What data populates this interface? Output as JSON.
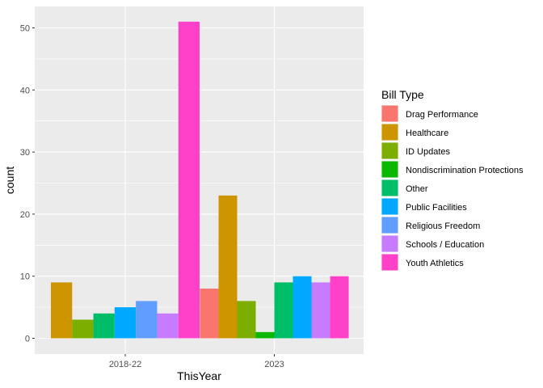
{
  "chart_data": {
    "type": "bar",
    "xlabel": "ThisYear",
    "ylabel": "count",
    "ylim": [
      0,
      52.5
    ],
    "yticks": [
      0,
      10,
      20,
      30,
      40,
      50
    ],
    "grid": true,
    "legend_position": "right",
    "legend_title": "Bill Type",
    "categories": [
      "2018-22",
      "2023"
    ],
    "series": [
      {
        "name": "Drag Performance",
        "color": "#F8766D",
        "values": [
          null,
          8
        ]
      },
      {
        "name": "Healthcare",
        "color": "#CD9600",
        "values": [
          9,
          23
        ]
      },
      {
        "name": "ID Updates",
        "color": "#7CAE00",
        "values": [
          3,
          6
        ]
      },
      {
        "name": "Nondiscrimination Protections",
        "color": "#0CB702",
        "values": [
          null,
          1
        ]
      },
      {
        "name": "Other",
        "color": "#00BE67",
        "values": [
          4,
          9
        ]
      },
      {
        "name": "Public Facilities",
        "color": "#00A9FF",
        "values": [
          5,
          10
        ]
      },
      {
        "name": "Religious Freedom",
        "color": "#619CFF",
        "values": [
          6,
          null
        ]
      },
      {
        "name": "Schools / Education",
        "color": "#C77CFF",
        "values": [
          4,
          9
        ]
      },
      {
        "name": "Youth Athletics",
        "color": "#FF40C8",
        "values": [
          51,
          10
        ]
      }
    ],
    "panel_background": "#EBEBEB",
    "grid_color": "#FFFFFF"
  }
}
